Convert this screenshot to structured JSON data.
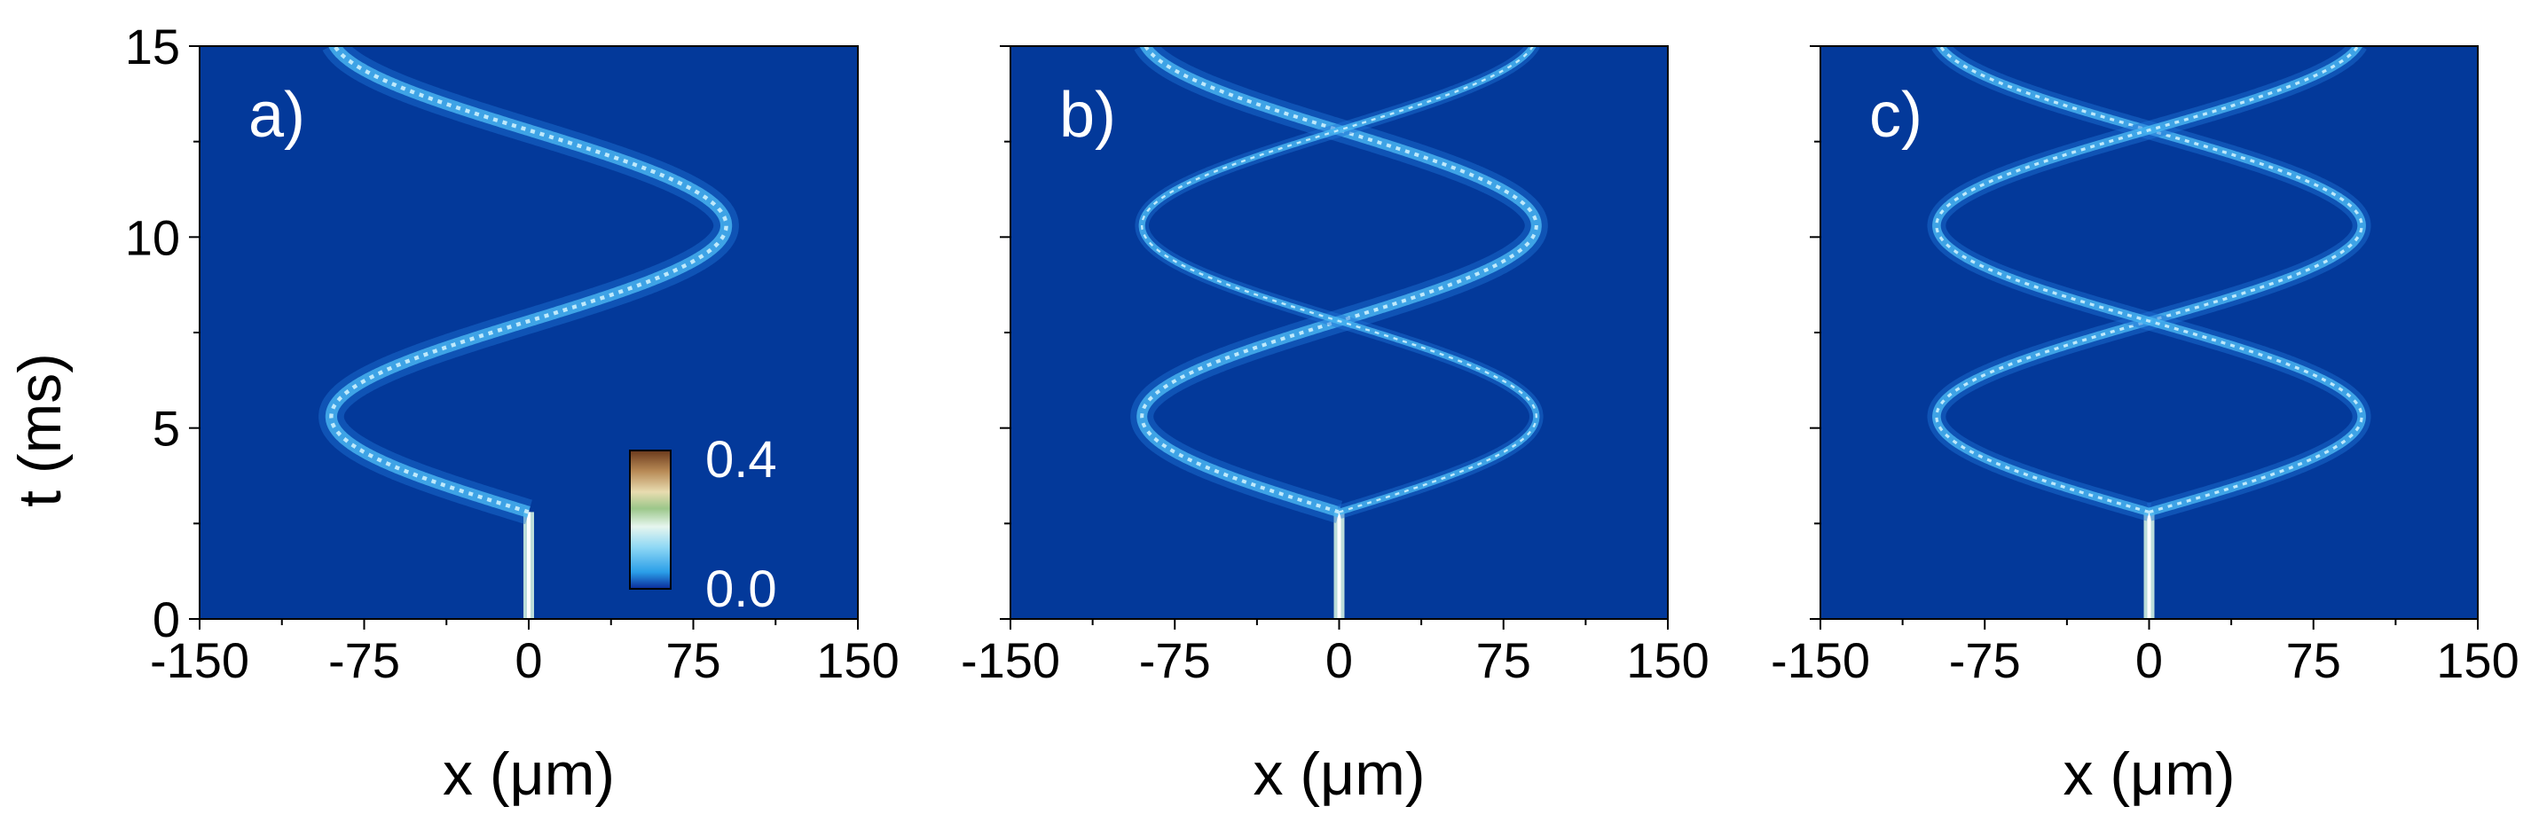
{
  "figure": {
    "ylabel": "t (ms)",
    "colorbar": {
      "min_label": "0.0",
      "max_label": "0.4",
      "range": [
        0.0,
        0.4
      ]
    },
    "colors": {
      "background": "#03399a",
      "density_ramp": [
        "#0a54c2",
        "#2a9ee8",
        "#8fd8f5",
        "#e6f6ee",
        "#9cc78a",
        "#e8dcb0",
        "#b88a56",
        "#6b3a1c"
      ]
    }
  },
  "chart_data": [
    {
      "type": "heatmap",
      "panel_label": "a)",
      "xlabel": "x (μm)",
      "ylabel": "t (ms)",
      "xlim": [
        -150,
        150
      ],
      "ylim": [
        0,
        15
      ],
      "x_ticks": [
        "-150",
        "-75",
        "0",
        "75",
        "150"
      ],
      "y_ticks": [
        "0",
        "5",
        "10",
        "15"
      ],
      "grid": false,
      "y_tick_labels_shown": true,
      "has_colorbar": true,
      "release_time": 2.8,
      "trajectories": [
        {
          "amplitude": 90,
          "period": 10,
          "phase_t": 2.8,
          "direction": -1,
          "width": 2.2
        }
      ]
    },
    {
      "type": "heatmap",
      "panel_label": "b)",
      "xlabel": "x (μm)",
      "xlim": [
        -150,
        150
      ],
      "ylim": [
        0,
        15
      ],
      "x_ticks": [
        "-150",
        "-75",
        "0",
        "75",
        "150"
      ],
      "y_ticks": [
        "0",
        "5",
        "10",
        "15"
      ],
      "grid": false,
      "y_tick_labels_shown": false,
      "has_colorbar": false,
      "release_time": 2.8,
      "trajectories": [
        {
          "amplitude": 90,
          "period": 10,
          "phase_t": 2.8,
          "direction": -1,
          "width": 2.0
        },
        {
          "amplitude": 90,
          "period": 10,
          "phase_t": 2.8,
          "direction": 1,
          "width": 1.2
        }
      ]
    },
    {
      "type": "heatmap",
      "panel_label": "c)",
      "xlabel": "x (μm)",
      "xlim": [
        -150,
        150
      ],
      "ylim": [
        0,
        15
      ],
      "x_ticks": [
        "-150",
        "-75",
        "0",
        "75",
        "150"
      ],
      "y_ticks": [
        "0",
        "5",
        "10",
        "15"
      ],
      "grid": false,
      "y_tick_labels_shown": false,
      "has_colorbar": false,
      "release_time": 2.8,
      "trajectories": [
        {
          "amplitude": 97,
          "period": 10,
          "phase_t": 2.8,
          "direction": -1,
          "width": 1.6
        },
        {
          "amplitude": 97,
          "period": 10,
          "phase_t": 2.8,
          "direction": 1,
          "width": 1.6
        }
      ]
    }
  ]
}
